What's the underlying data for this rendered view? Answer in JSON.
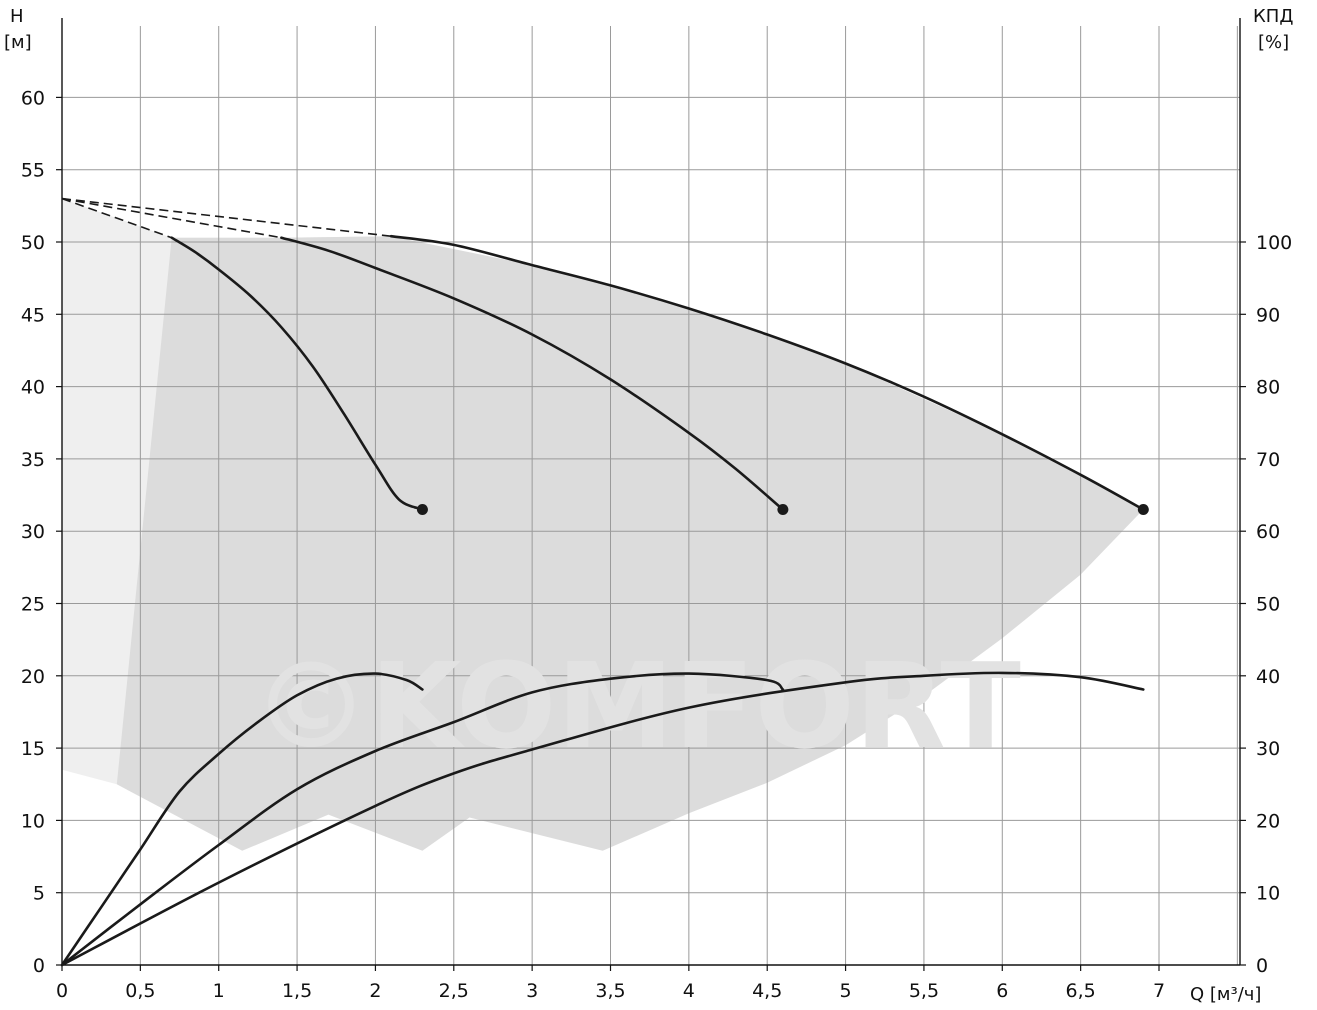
{
  "chart_data": {
    "type": "line",
    "x_axis": {
      "label": "Q [м³/ч]",
      "range": [
        0,
        7.5
      ],
      "ticks": [
        0,
        0.5,
        1,
        1.5,
        2,
        2.5,
        3,
        3.5,
        4,
        4.5,
        5,
        5.5,
        6,
        6.5,
        7
      ],
      "tick_labels": [
        "0",
        "0,5",
        "1",
        "1,5",
        "2",
        "2,5",
        "3",
        "3,5",
        "4",
        "4,5",
        "5",
        "5,5",
        "6",
        "6,5",
        "7"
      ]
    },
    "y_axis_left": {
      "label_line1": "H",
      "label_line2": "[м]",
      "range": [
        0,
        65
      ],
      "ticks": [
        0,
        5,
        10,
        15,
        20,
        25,
        30,
        35,
        40,
        45,
        50,
        55,
        60
      ]
    },
    "y_axis_right": {
      "label_line1": "КПД",
      "label_line2": "[%]",
      "ticks": [
        0,
        10,
        20,
        30,
        40,
        50,
        60,
        70,
        80,
        90,
        100
      ],
      "ticks_at_left_units": [
        0,
        5,
        10,
        15,
        20,
        25,
        30,
        35,
        40,
        45,
        50
      ]
    },
    "grid": true,
    "head_curves": [
      {
        "dashed_start": [
          [
            0,
            53
          ],
          [
            0.7,
            50.3
          ]
        ],
        "points": [
          [
            0.7,
            50.3
          ],
          [
            0.85,
            49.3
          ],
          [
            1.0,
            48.1
          ],
          [
            1.2,
            46.3
          ],
          [
            1.4,
            44.1
          ],
          [
            1.6,
            41.4
          ],
          [
            1.8,
            38.1
          ],
          [
            2.0,
            34.6
          ],
          [
            2.15,
            32.2
          ],
          [
            2.3,
            31.5
          ]
        ],
        "end_marker": [
          2.3,
          31.5
        ]
      },
      {
        "dashed_start": [
          [
            0,
            53
          ],
          [
            1.4,
            50.3
          ]
        ],
        "points": [
          [
            1.4,
            50.3
          ],
          [
            1.7,
            49.4
          ],
          [
            2.0,
            48.2
          ],
          [
            2.5,
            46.1
          ],
          [
            3.0,
            43.6
          ],
          [
            3.5,
            40.5
          ],
          [
            4.0,
            36.8
          ],
          [
            4.3,
            34.3
          ],
          [
            4.6,
            31.5
          ]
        ],
        "end_marker": [
          4.6,
          31.5
        ]
      },
      {
        "dashed_start": [
          [
            0,
            53
          ],
          [
            2.1,
            50.4
          ]
        ],
        "points": [
          [
            2.1,
            50.4
          ],
          [
            2.5,
            49.8
          ],
          [
            3.0,
            48.4
          ],
          [
            3.5,
            47.0
          ],
          [
            4.0,
            45.4
          ],
          [
            4.5,
            43.6
          ],
          [
            5.0,
            41.6
          ],
          [
            5.5,
            39.3
          ],
          [
            6.0,
            36.7
          ],
          [
            6.5,
            33.9
          ],
          [
            6.9,
            31.5
          ]
        ],
        "end_marker": [
          6.9,
          31.5
        ]
      }
    ],
    "efficiency_curves_percent": [
      {
        "points": [
          [
            0,
            0
          ],
          [
            0.25,
            8
          ],
          [
            0.5,
            16
          ],
          [
            0.75,
            24
          ],
          [
            1.0,
            29.2
          ],
          [
            1.25,
            33.6
          ],
          [
            1.5,
            37.3
          ],
          [
            1.75,
            39.6
          ],
          [
            2.0,
            40.3
          ],
          [
            2.2,
            39.4
          ],
          [
            2.3,
            38.1
          ]
        ]
      },
      {
        "points": [
          [
            0,
            0
          ],
          [
            0.5,
            8.4
          ],
          [
            1.0,
            16.6
          ],
          [
            1.5,
            24.3
          ],
          [
            2.0,
            29.6
          ],
          [
            2.5,
            33.6
          ],
          [
            3.0,
            37.7
          ],
          [
            3.5,
            39.6
          ],
          [
            4.0,
            40.3
          ],
          [
            4.5,
            39.4
          ],
          [
            4.6,
            38.1
          ]
        ]
      },
      {
        "points": [
          [
            0,
            0
          ],
          [
            1.0,
            11.4
          ],
          [
            2.0,
            22.0
          ],
          [
            2.5,
            26.5
          ],
          [
            3.0,
            29.8
          ],
          [
            4.0,
            35.6
          ],
          [
            5.0,
            39.1
          ],
          [
            5.5,
            40.0
          ],
          [
            6.0,
            40.4
          ],
          [
            6.5,
            39.8
          ],
          [
            6.9,
            38.1
          ]
        ]
      }
    ],
    "shaded_regions": [
      {
        "color": "#efefef",
        "points": [
          [
            0,
            53
          ],
          [
            0.7,
            50.3
          ],
          [
            1.4,
            50.3
          ],
          [
            2.1,
            50.4
          ],
          [
            2.1,
            48
          ],
          [
            0.35,
            12.5
          ],
          [
            0,
            13.5
          ]
        ]
      },
      {
        "color": "#dcdcdc",
        "points": [
          [
            0.7,
            50.3
          ],
          [
            1.4,
            50.3
          ],
          [
            2.1,
            50.4
          ],
          [
            3.0,
            48.4
          ],
          [
            4.0,
            45.4
          ],
          [
            5.0,
            41.6
          ],
          [
            6.0,
            36.7
          ],
          [
            6.9,
            31.5
          ],
          [
            6.5,
            27.0
          ],
          [
            6.0,
            22.6
          ],
          [
            5.5,
            18.6
          ],
          [
            5.0,
            15.2
          ],
          [
            4.5,
            12.6
          ],
          [
            4.0,
            10.5
          ],
          [
            3.45,
            7.9
          ],
          [
            2.6,
            10.2
          ],
          [
            2.3,
            7.9
          ],
          [
            1.7,
            10.4
          ],
          [
            1.15,
            7.9
          ],
          [
            0.35,
            12.5
          ]
        ]
      }
    ],
    "watermark_text": "©KOMFORT"
  }
}
